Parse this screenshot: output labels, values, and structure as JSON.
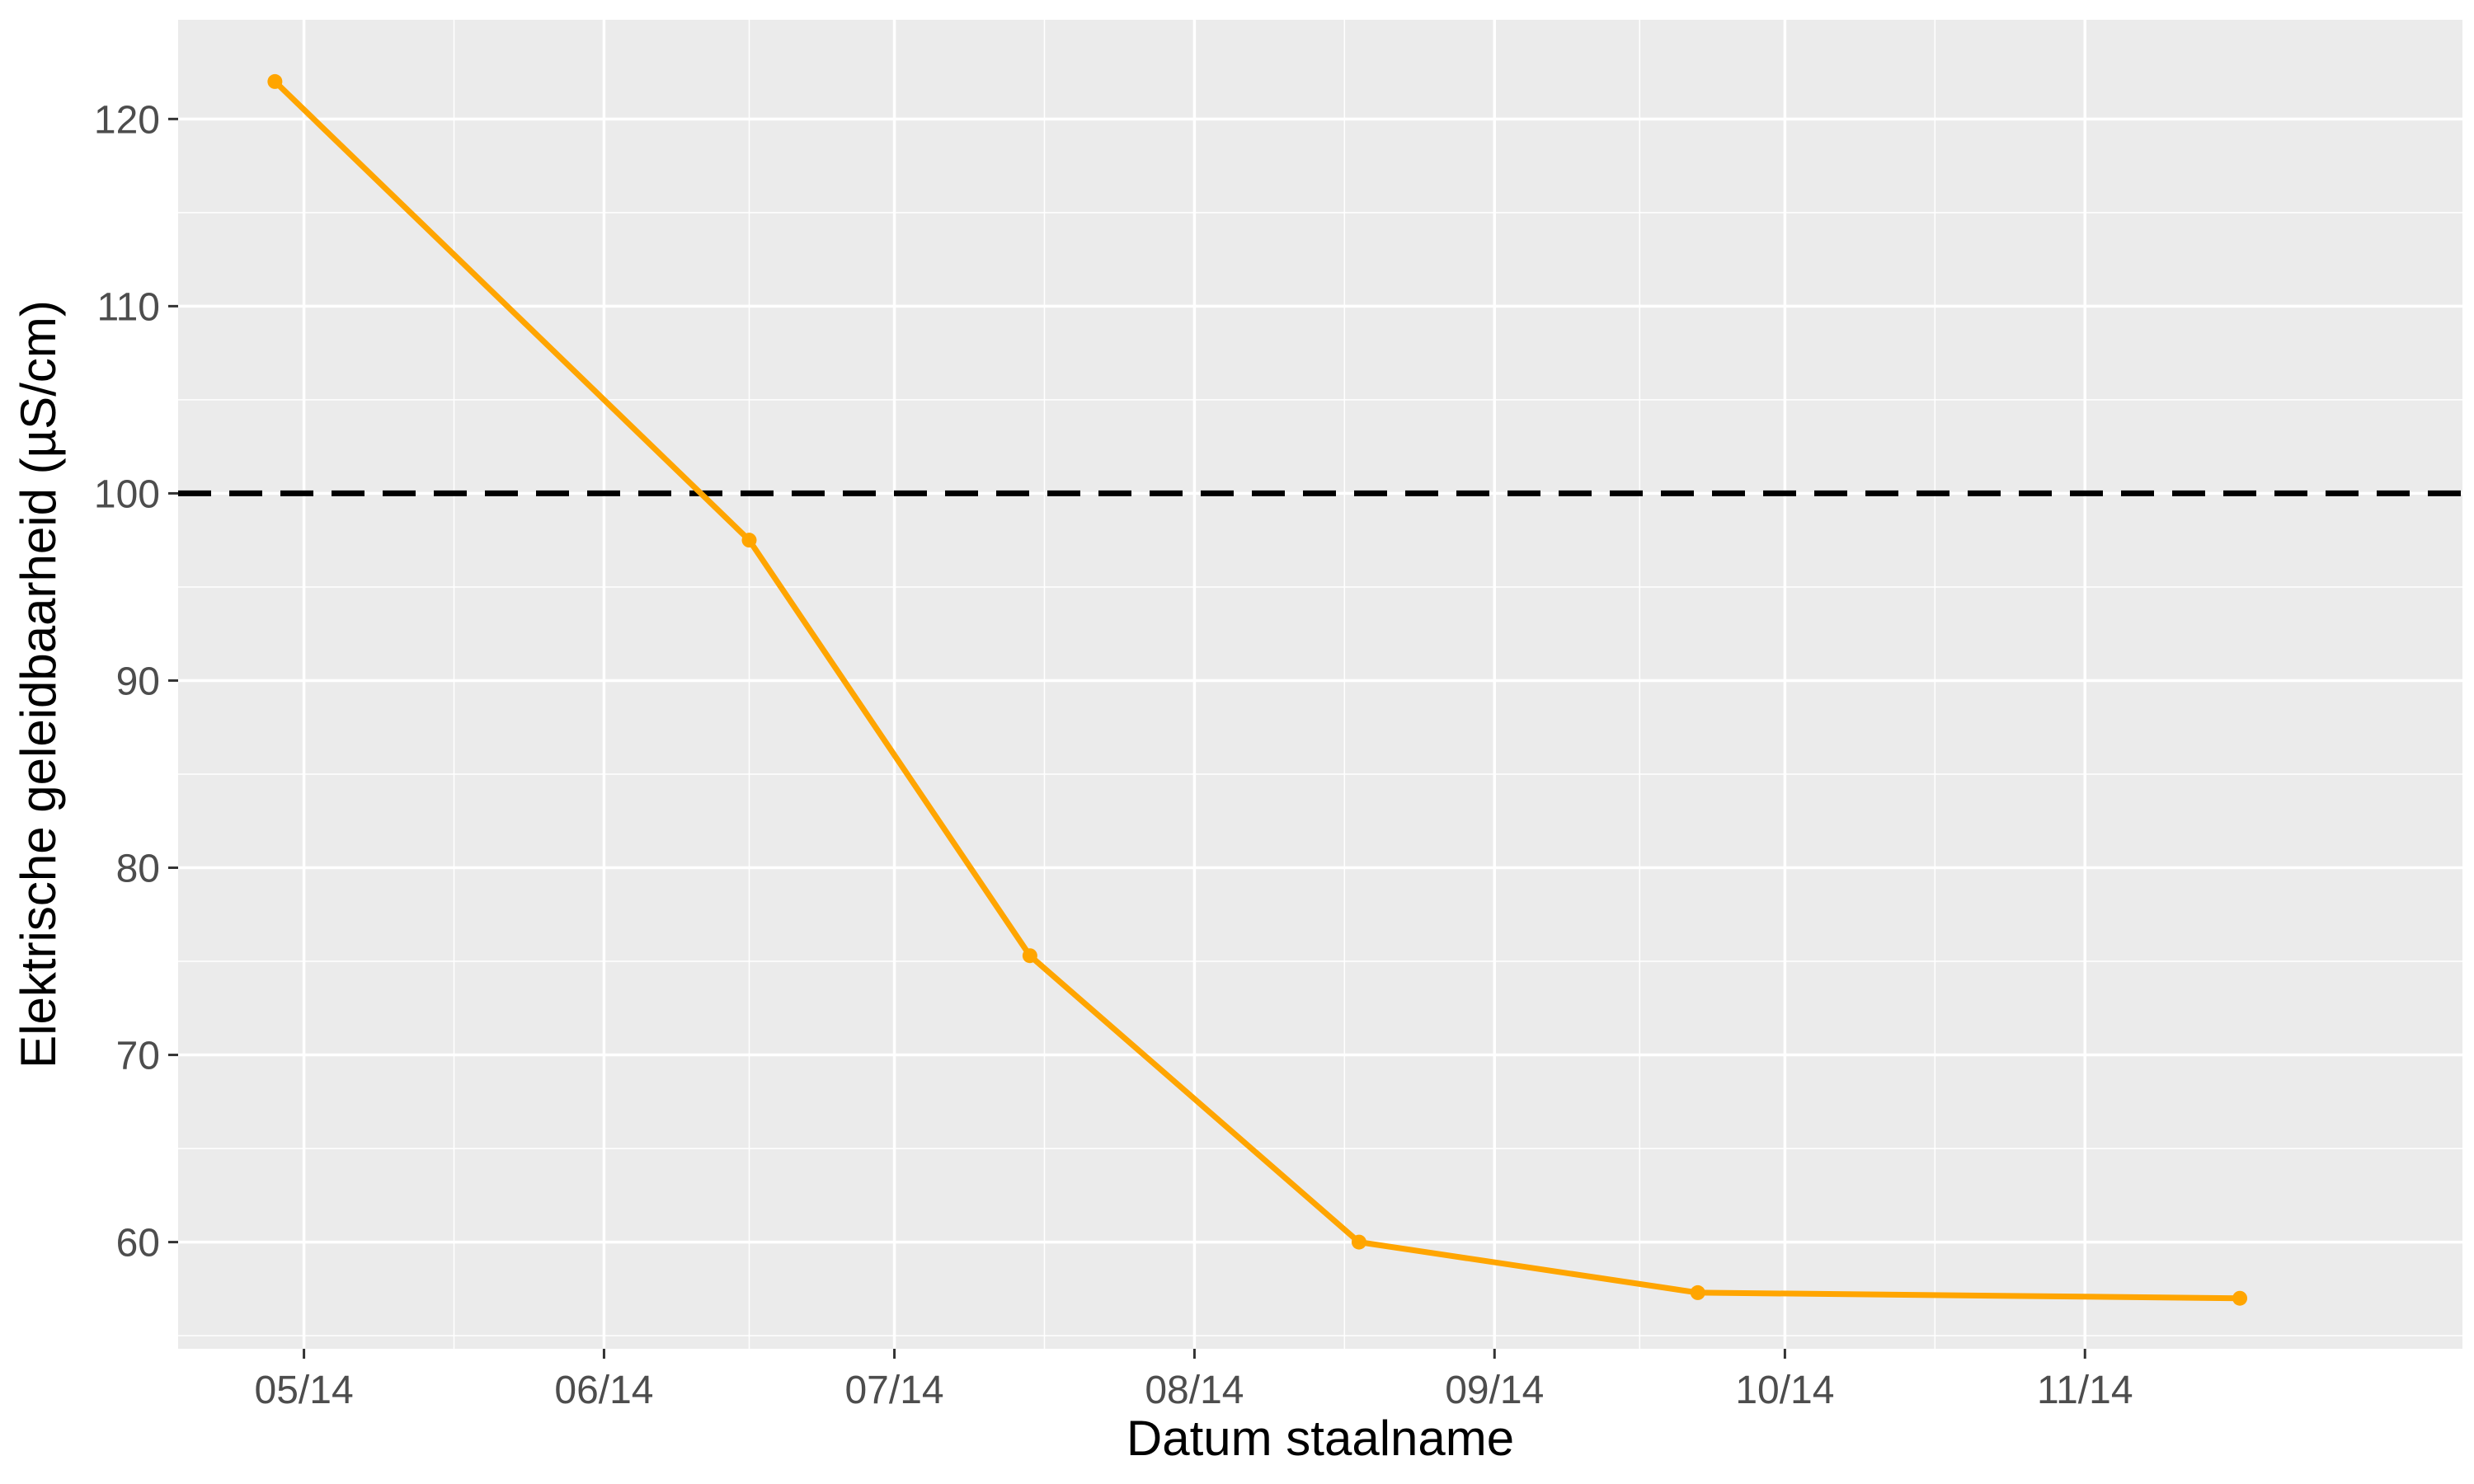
{
  "chart_data": {
    "type": "line",
    "title": "",
    "xlabel": "Datum staalname",
    "ylabel": "Elektrische geleidbaarheid (µS/cm)",
    "x_axis_type": "date",
    "x_tick_format": "MM/YY",
    "xlim": [
      "2014-04-18",
      "2014-12-10"
    ],
    "x_ticks": [
      {
        "date": "2014-05-01",
        "label": "05/14"
      },
      {
        "date": "2014-06-01",
        "label": "06/14"
      },
      {
        "date": "2014-07-01",
        "label": "07/14"
      },
      {
        "date": "2014-08-01",
        "label": "08/14"
      },
      {
        "date": "2014-09-01",
        "label": "09/14"
      },
      {
        "date": "2014-10-01",
        "label": "10/14"
      },
      {
        "date": "2014-11-01",
        "label": "11/14"
      }
    ],
    "ylim": [
      54.3,
      125.3
    ],
    "y_ticks": [
      60,
      70,
      80,
      90,
      100,
      110,
      120
    ],
    "series": [
      {
        "color": "#FFA500",
        "points": [
          {
            "x": "2014-04-28",
            "y": 122.0
          },
          {
            "x": "2014-06-16",
            "y": 97.5
          },
          {
            "x": "2014-07-15",
            "y": 75.3
          },
          {
            "x": "2014-08-18",
            "y": 60.0
          },
          {
            "x": "2014-09-22",
            "y": 57.3
          },
          {
            "x": "2014-11-17",
            "y": 57.0
          }
        ]
      }
    ],
    "reference_line": {
      "y": 100,
      "style": "dashed",
      "color": "#000000"
    },
    "grid": true,
    "legend": "none",
    "background": "#EBEBEB",
    "gridline_color": "#FFFFFF"
  }
}
